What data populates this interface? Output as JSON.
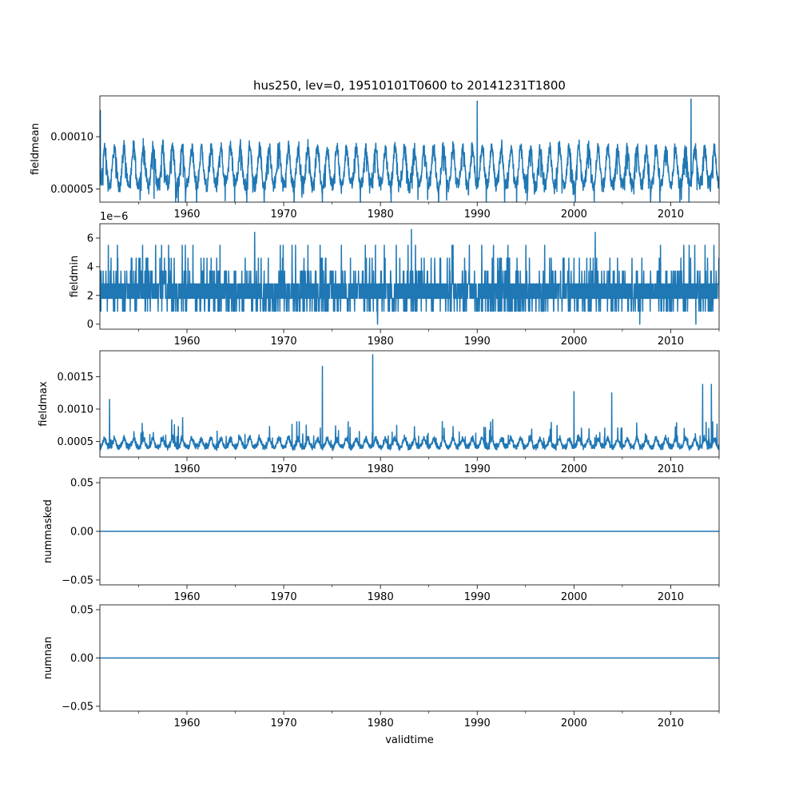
{
  "chart_data": [
    {
      "type": "line",
      "title": "hus250, lev=0, 19510101T0600 to 20141231T1800",
      "ylabel": "fieldmean",
      "xlabel": "",
      "xlim": [
        1951,
        2015
      ],
      "ylim": [
        3.75e-05,
        0.000139
      ],
      "xticks": [
        1960,
        1970,
        1980,
        1990,
        2000,
        2010
      ],
      "yticks": [
        5e-05,
        0.0001
      ],
      "ytick_labels": [
        "0.00005",
        "0.00010"
      ],
      "offset_text": "",
      "color": "#1f77b4",
      "series": [
        {
          "name": "fieldmean",
          "signal": "seasonal",
          "baseline": 7e-05,
          "amplitude": 3.5e-05,
          "noise": 1.2e-05,
          "spikes": [
            [
              1951.05,
              0.000125
            ],
            [
              1990.0,
              0.000134
            ],
            [
              2012.1,
              0.000136
            ],
            [
              1956.6,
              4.1e-05
            ]
          ]
        }
      ]
    },
    {
      "type": "line",
      "title": "",
      "ylabel": "fieldmin",
      "xlabel": "",
      "xlim": [
        1951,
        2015
      ],
      "ylim": [
        -0.35,
        7.0
      ],
      "xticks": [
        1960,
        1970,
        1980,
        1990,
        2000,
        2010
      ],
      "yticks": [
        0,
        2,
        4,
        6
      ],
      "ytick_labels": [
        "0",
        "2",
        "4",
        "6"
      ],
      "offset_text": "1e−6",
      "color": "#1f77b4",
      "series": [
        {
          "name": "fieldmin",
          "signal": "discrete",
          "levels": [
            0.9,
            1.8,
            2.8,
            3.7,
            4.6,
            5.5
          ],
          "spikes": [
            [
              1967.0,
              6.4
            ],
            [
              1983.2,
              6.6
            ],
            [
              2002.2,
              6.4
            ],
            [
              1979.7,
              0.0
            ],
            [
              2006.8,
              0.0
            ],
            [
              2012.6,
              0.0
            ]
          ]
        }
      ]
    },
    {
      "type": "line",
      "title": "",
      "ylabel": "fieldmax",
      "xlabel": "",
      "xlim": [
        1951,
        2015
      ],
      "ylim": [
        0.00026,
        0.0019
      ],
      "xticks": [
        1960,
        1970,
        1980,
        1990,
        2000,
        2010
      ],
      "yticks": [
        0.0005,
        0.001,
        0.0015
      ],
      "ytick_labels": [
        "0.0005",
        "0.0010",
        "0.0015"
      ],
      "offset_text": "",
      "color": "#1f77b4",
      "series": [
        {
          "name": "fieldmax",
          "signal": "spiky",
          "baseline": 0.00042,
          "noise": 9e-05,
          "spikes": [
            [
              1974.0,
              0.00166
            ],
            [
              1979.2,
              0.00184
            ],
            [
              1952.0,
              0.00115
            ],
            [
              2013.3,
              0.00138
            ],
            [
              2014.2,
              0.00138
            ],
            [
              2000.0,
              0.00127
            ],
            [
              2003.9,
              0.00125
            ]
          ]
        }
      ]
    },
    {
      "type": "line",
      "title": "",
      "ylabel": "nummasked",
      "xlabel": "",
      "xlim": [
        1951,
        2015
      ],
      "ylim": [
        -0.055,
        0.055
      ],
      "xticks": [
        1960,
        1970,
        1980,
        1990,
        2000,
        2010
      ],
      "yticks": [
        -0.05,
        0.0,
        0.05
      ],
      "ytick_labels": [
        "−0.05",
        "0.00",
        "0.05"
      ],
      "offset_text": "",
      "color": "#1f77b4",
      "series": [
        {
          "name": "nummasked",
          "signal": "constant",
          "value": 0.0
        }
      ]
    },
    {
      "type": "line",
      "title": "",
      "ylabel": "numnan",
      "xlabel": "validtime",
      "xlim": [
        1951,
        2015
      ],
      "ylim": [
        -0.055,
        0.055
      ],
      "xticks": [
        1960,
        1970,
        1980,
        1990,
        2000,
        2010
      ],
      "yticks": [
        -0.05,
        0.0,
        0.05
      ],
      "ytick_labels": [
        "−0.05",
        "0.00",
        "0.05"
      ],
      "offset_text": "",
      "color": "#1f77b4",
      "series": [
        {
          "name": "numnan",
          "signal": "constant",
          "value": 0.0
        }
      ]
    }
  ]
}
